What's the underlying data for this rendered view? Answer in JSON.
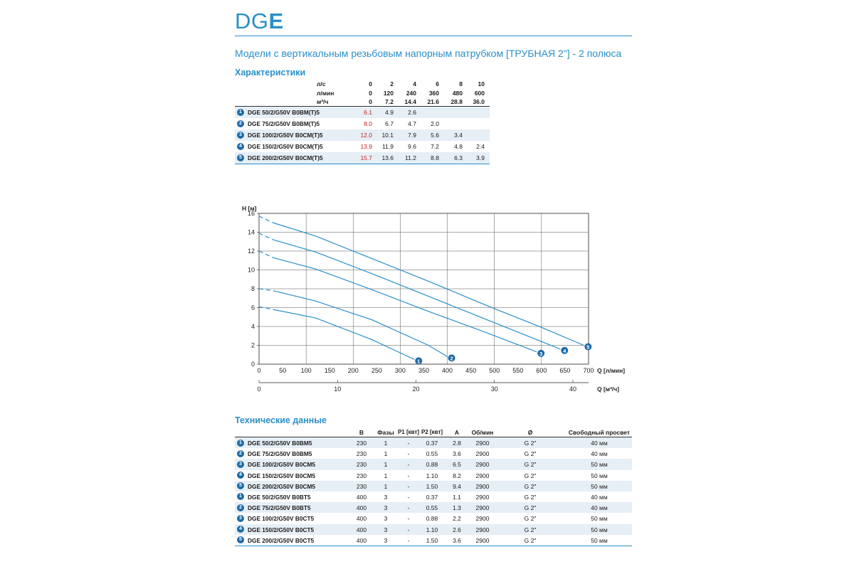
{
  "header": {
    "title_prefix": "DG",
    "title_bold": "E",
    "subtitle": "Модели с вертикальным резьбовым напорным патрубком [ТРУБНАЯ 2\"] - 2 полюса"
  },
  "characteristics": {
    "heading": "Характеристики",
    "unit_rows": [
      {
        "unit": "л/с",
        "values": [
          "0",
          "2",
          "4",
          "6",
          "8",
          "10"
        ]
      },
      {
        "unit": "л/мин",
        "values": [
          "0",
          "120",
          "240",
          "360",
          "480",
          "600"
        ]
      },
      {
        "unit": "м³/ч",
        "values": [
          "0",
          "7.2",
          "14.4",
          "21.6",
          "28.8",
          "36.0"
        ]
      }
    ],
    "models": [
      {
        "badge": "1",
        "name": "DGE 50/2/G50V B0BM(T)5",
        "values": [
          "6.1",
          "4.9",
          "2.6",
          "",
          "",
          ""
        ]
      },
      {
        "badge": "2",
        "name": "DGE 75/2/G50V B0BM(T)5",
        "values": [
          "8.0",
          "6.7",
          "4.7",
          "2.0",
          "",
          ""
        ]
      },
      {
        "badge": "3",
        "name": "DGE 100/2/G50V B0CM(T)5",
        "values": [
          "12.0",
          "10.1",
          "7.9",
          "5.6",
          "3.4",
          ""
        ]
      },
      {
        "badge": "4",
        "name": "DGE 150/2/G50V B0CM(T)5",
        "values": [
          "13.9",
          "11.9",
          "9.6",
          "7.2",
          "4.8",
          "2.4"
        ]
      },
      {
        "badge": "5",
        "name": "DGE 200/2/G50V B0CM(T)5",
        "values": [
          "15.7",
          "13.6",
          "11.2",
          "8.8",
          "6.3",
          "3.9"
        ]
      }
    ],
    "highlight_color": "#cc2222",
    "badge_color": "#1e6aa8"
  },
  "chart_data": {
    "type": "line",
    "ylabel": "H [м]",
    "xlabel": "Q [л/мин]",
    "xlabel2": "Q [м³/ч]",
    "xlim": [
      0,
      700
    ],
    "ylim": [
      0,
      16
    ],
    "xticks": [
      0,
      50,
      100,
      150,
      200,
      250,
      300,
      350,
      400,
      450,
      500,
      550,
      600,
      650,
      700
    ],
    "yticks": [
      0,
      2,
      4,
      6,
      8,
      10,
      12,
      14,
      16
    ],
    "xticks2": [
      0,
      10,
      20,
      30,
      40
    ],
    "grid": true,
    "line_color": "#2a8fc8",
    "series": [
      {
        "name": "1",
        "x": [
          0,
          30,
          120,
          240,
          330
        ],
        "y": [
          6.1,
          5.8,
          4.9,
          2.6,
          0.5
        ]
      },
      {
        "name": "2",
        "x": [
          0,
          30,
          120,
          240,
          360,
          400
        ],
        "y": [
          8.0,
          7.8,
          6.7,
          4.7,
          2.0,
          0.8
        ]
      },
      {
        "name": "3",
        "x": [
          0,
          30,
          120,
          240,
          360,
          480,
          590
        ],
        "y": [
          12.0,
          11.3,
          10.1,
          7.9,
          5.6,
          3.4,
          1.3
        ]
      },
      {
        "name": "4",
        "x": [
          0,
          30,
          120,
          240,
          360,
          480,
          600,
          640
        ],
        "y": [
          13.9,
          13.2,
          11.9,
          9.6,
          7.2,
          4.8,
          2.4,
          1.6
        ]
      },
      {
        "name": "5",
        "x": [
          0,
          30,
          120,
          240,
          360,
          480,
          600,
          690
        ],
        "y": [
          15.7,
          15.0,
          13.6,
          11.2,
          8.8,
          6.3,
          3.9,
          2.0
        ]
      }
    ]
  },
  "technical": {
    "heading": "Технические данные",
    "columns": [
      "В",
      "Фазы",
      "P1 [квт]",
      "P2 [квт]",
      "A",
      "Об/мин",
      "Ø",
      "Свободный просвет"
    ],
    "rows": [
      {
        "badge": "1",
        "name": "DGE 50/2/G50V B0BM5",
        "cells": [
          "230",
          "1",
          "-",
          "0.37",
          "2.8",
          "2900",
          "G 2\"",
          "40 мм"
        ]
      },
      {
        "badge": "2",
        "name": "DGE 75/2/G50V B0BM5",
        "cells": [
          "230",
          "1",
          "-",
          "0.55",
          "3.6",
          "2900",
          "G 2\"",
          "40 мм"
        ]
      },
      {
        "badge": "3",
        "name": "DGE 100/2/G50V B0CM5",
        "cells": [
          "230",
          "1",
          "-",
          "0.88",
          "6.5",
          "2900",
          "G 2\"",
          "50 мм"
        ]
      },
      {
        "badge": "4",
        "name": "DGE 150/2/G50V B0CM5",
        "cells": [
          "230",
          "1",
          "-",
          "1.10",
          "8.2",
          "2900",
          "G 2\"",
          "50 мм"
        ]
      },
      {
        "badge": "5",
        "name": "DGE 200/2/G50V B0CM5",
        "cells": [
          "230",
          "1",
          "-",
          "1.50",
          "9.4",
          "2900",
          "G 2\"",
          "50 мм"
        ]
      },
      {
        "badge": "1",
        "name": "DGE 50/2/G50V B0BT5",
        "cells": [
          "400",
          "3",
          "-",
          "0.37",
          "1.1",
          "2900",
          "G 2\"",
          "40 мм"
        ]
      },
      {
        "badge": "2",
        "name": "DGE 75/2/G50V B0BT5",
        "cells": [
          "400",
          "3",
          "-",
          "0.55",
          "1.3",
          "2900",
          "G 2\"",
          "40 мм"
        ]
      },
      {
        "badge": "3",
        "name": "DGE 100/2/G50V B0CT5",
        "cells": [
          "400",
          "3",
          "-",
          "0.88",
          "2.2",
          "2900",
          "G 2\"",
          "50 мм"
        ]
      },
      {
        "badge": "4",
        "name": "DGE 150/2/G50V B0CT5",
        "cells": [
          "400",
          "3",
          "-",
          "1.10",
          "2.6",
          "2900",
          "G 2\"",
          "50 мм"
        ]
      },
      {
        "badge": "5",
        "name": "DGE 200/2/G50V B0CT5",
        "cells": [
          "400",
          "3",
          "-",
          "1.50",
          "3.6",
          "2900",
          "G 2\"",
          "50 мм"
        ]
      }
    ]
  }
}
